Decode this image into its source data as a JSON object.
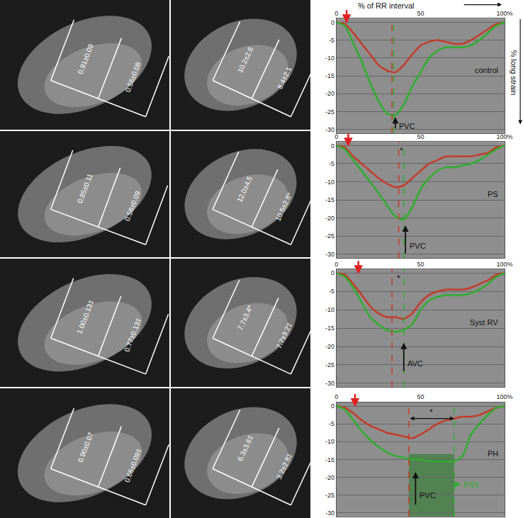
{
  "header": {
    "x_label": "% of RR interval",
    "y_label": "% long strain"
  },
  "image_panels": [
    {
      "left_labels": [
        "0.91±0.09",
        "0.56±0.08"
      ],
      "right_labels": [
        "10.2±2.6",
        "8.4±2.1"
      ]
    },
    {
      "left_labels": [
        "0.85±0.11",
        "0.58±0.09"
      ],
      "right_labels": [
        "12.0±4.5",
        "10.5±2.8*"
      ]
    },
    {
      "left_labels": [
        "1.00±0.13‡",
        "0.77±0.13‡"
      ],
      "right_labels": [
        "7.7±3.4*",
        "7.7±3.2‡"
      ]
    },
    {
      "left_labels": [
        "0.90±0.07",
        "0.66±0.09‡"
      ],
      "right_labels": [
        "6.3±3.6‡",
        "3.2±2.8‡"
      ]
    }
  ],
  "chart_data": [
    {
      "type": "line",
      "title": "control",
      "x": [
        0,
        5,
        10,
        15,
        20,
        25,
        30,
        35,
        40,
        45,
        50,
        55,
        60,
        65,
        70,
        75,
        80,
        85,
        90,
        95,
        100
      ],
      "xlim": [
        0,
        100
      ],
      "xticks": [
        0,
        50,
        {
          "value": 100,
          "label": "100%"
        }
      ],
      "ylim": [
        -31,
        1
      ],
      "yticks": [
        0,
        -5,
        -10,
        -15,
        -20,
        -25,
        -30
      ],
      "grid": true,
      "series": [
        {
          "color": "#c43c2a",
          "values": [
            0,
            -0.5,
            -3,
            -6,
            -9,
            -12,
            -13.5,
            -14,
            -12,
            -9,
            -6.5,
            -5.5,
            -5,
            -5.5,
            -6,
            -6,
            -5,
            -3.5,
            -2,
            -0.5,
            0
          ]
        },
        {
          "color": "#2fae2f",
          "values": [
            0,
            -1,
            -6,
            -11,
            -17,
            -22,
            -25.5,
            -26,
            -23,
            -18,
            -14,
            -10,
            -8,
            -7,
            -7,
            -7,
            -6.5,
            -5,
            -3,
            -1,
            0
          ]
        }
      ],
      "onset_arrow": 6,
      "peak_lines": [
        {
          "x": 33,
          "color": "#c43c2a"
        },
        {
          "x": 34,
          "color": "#2fae2f"
        }
      ],
      "events": [
        {
          "text": "PVC",
          "x0": 35,
          "y0": -30,
          "x1": 35,
          "y1": -26.5
        }
      ]
    },
    {
      "type": "line",
      "title": "PS",
      "x": [
        0,
        5,
        10,
        15,
        20,
        25,
        30,
        35,
        40,
        45,
        50,
        55,
        60,
        65,
        70,
        75,
        80,
        85,
        90,
        95,
        100
      ],
      "xlim": [
        0,
        100
      ],
      "xticks": [
        0,
        50,
        {
          "value": 100,
          "label": "100%"
        }
      ],
      "ylim": [
        -31,
        1
      ],
      "yticks": [
        0,
        -5,
        -10,
        -15,
        -20,
        -25,
        -30
      ],
      "grid": true,
      "series": [
        {
          "color": "#c43c2a",
          "values": [
            0,
            -0.5,
            -3,
            -5,
            -7,
            -9,
            -10.5,
            -11.5,
            -11,
            -9,
            -7,
            -5,
            -4,
            -3,
            -3,
            -3,
            -3,
            -2.5,
            -2,
            -0.5,
            0
          ]
        },
        {
          "color": "#2fae2f",
          "values": [
            0,
            -1,
            -4,
            -7,
            -10,
            -13,
            -16.5,
            -19.5,
            -20.5,
            -17,
            -12,
            -9,
            -7,
            -6,
            -6,
            -5.5,
            -5,
            -4,
            -2.5,
            -1,
            0
          ]
        }
      ],
      "onset_arrow": 7,
      "peak_lines": [
        {
          "x": 37,
          "color": "#c43c2a"
        },
        {
          "x": 40,
          "color": "#2fae2f"
        }
      ],
      "notes": [
        {
          "text": "*",
          "x": 38.5,
          "y": -1.5
        }
      ],
      "events": [
        {
          "text": "PVC",
          "x0": 41,
          "y0": -30,
          "x1": 41,
          "y1": -22
        }
      ]
    },
    {
      "type": "line",
      "title": "Syst RV",
      "x": [
        0,
        5,
        10,
        15,
        20,
        25,
        30,
        35,
        40,
        45,
        50,
        55,
        60,
        65,
        70,
        75,
        80,
        85,
        90,
        95,
        100
      ],
      "xlim": [
        0,
        100
      ],
      "xticks": [
        0,
        50,
        {
          "value": 100,
          "label": "100%"
        }
      ],
      "ylim": [
        -31,
        1
      ],
      "yticks": [
        0,
        -5,
        -10,
        -15,
        -20,
        -25,
        -30
      ],
      "grid": true,
      "series": [
        {
          "color": "#c43c2a",
          "values": [
            0,
            -0.5,
            -3,
            -6,
            -9,
            -11,
            -12,
            -12,
            -12.5,
            -11,
            -8,
            -6,
            -5,
            -4.5,
            -4.5,
            -4.5,
            -4,
            -3,
            -2,
            -0.5,
            0
          ]
        },
        {
          "color": "#2fae2f",
          "values": [
            0,
            -1,
            -4,
            -8,
            -12,
            -14,
            -15.5,
            -16,
            -15.5,
            -14,
            -10,
            -7.5,
            -6.5,
            -6,
            -6,
            -6,
            -5.5,
            -4.5,
            -3,
            -1,
            0
          ]
        }
      ],
      "onset_arrow": 13,
      "peak_lines": [
        {
          "x": 33,
          "color": "#c43c2a"
        },
        {
          "x": 40,
          "color": "#2fae2f"
        }
      ],
      "notes": [
        {
          "text": "*",
          "x": 37,
          "y": -1.5
        }
      ],
      "events": [
        {
          "text": "AVC",
          "x0": 40,
          "y0": -27,
          "x1": 40,
          "y1": -19
        }
      ]
    },
    {
      "type": "line",
      "title": "PH",
      "x": [
        0,
        5,
        10,
        15,
        20,
        25,
        30,
        35,
        40,
        45,
        50,
        55,
        60,
        65,
        70,
        75,
        80,
        85,
        90,
        95,
        100
      ],
      "xlim": [
        0,
        100
      ],
      "xticks": [
        0,
        50,
        {
          "value": 100,
          "label": "100%"
        }
      ],
      "ylim": [
        -31,
        1
      ],
      "yticks": [
        0,
        -5,
        -10,
        -15,
        -20,
        -25,
        -30
      ],
      "grid": true,
      "series": [
        {
          "color": "#c43c2a",
          "values": [
            0,
            -0.5,
            -2,
            -4,
            -5.5,
            -6.5,
            -7.5,
            -8,
            -8.5,
            -9,
            -8,
            -6.5,
            -5,
            -4,
            -3.5,
            -3,
            -3,
            -2.5,
            -1.5,
            -0.5,
            0
          ]
        },
        {
          "color": "#2fae2f",
          "values": [
            0,
            -1,
            -4,
            -7,
            -9.5,
            -11.5,
            -13,
            -14,
            -14.5,
            -15,
            -15,
            -15.5,
            -15.5,
            -15.5,
            -15.5,
            -14,
            -8,
            -5,
            -2.5,
            -0.5,
            0
          ]
        }
      ],
      "onset_arrow": 11,
      "peak_lines": [
        {
          "x": 43,
          "color": "#c43c2a"
        },
        {
          "x": 70,
          "color": "#2fae2f"
        }
      ],
      "shaded": {
        "x0": 43,
        "x1": 70,
        "y0": -31,
        "y1": -13.5,
        "color": "#3e7d3e"
      },
      "interval": {
        "x0": 43,
        "x1": 70,
        "y": -3.5,
        "text": "*"
      },
      "events": [
        {
          "text": "PVC",
          "x0": 47,
          "y0": -28,
          "x1": 47,
          "y1": -18.5
        },
        {
          "text": "PSS",
          "x0": 70,
          "y0": -22,
          "x1": 74,
          "y1": -22,
          "color": "#2fae2f"
        }
      ]
    }
  ]
}
